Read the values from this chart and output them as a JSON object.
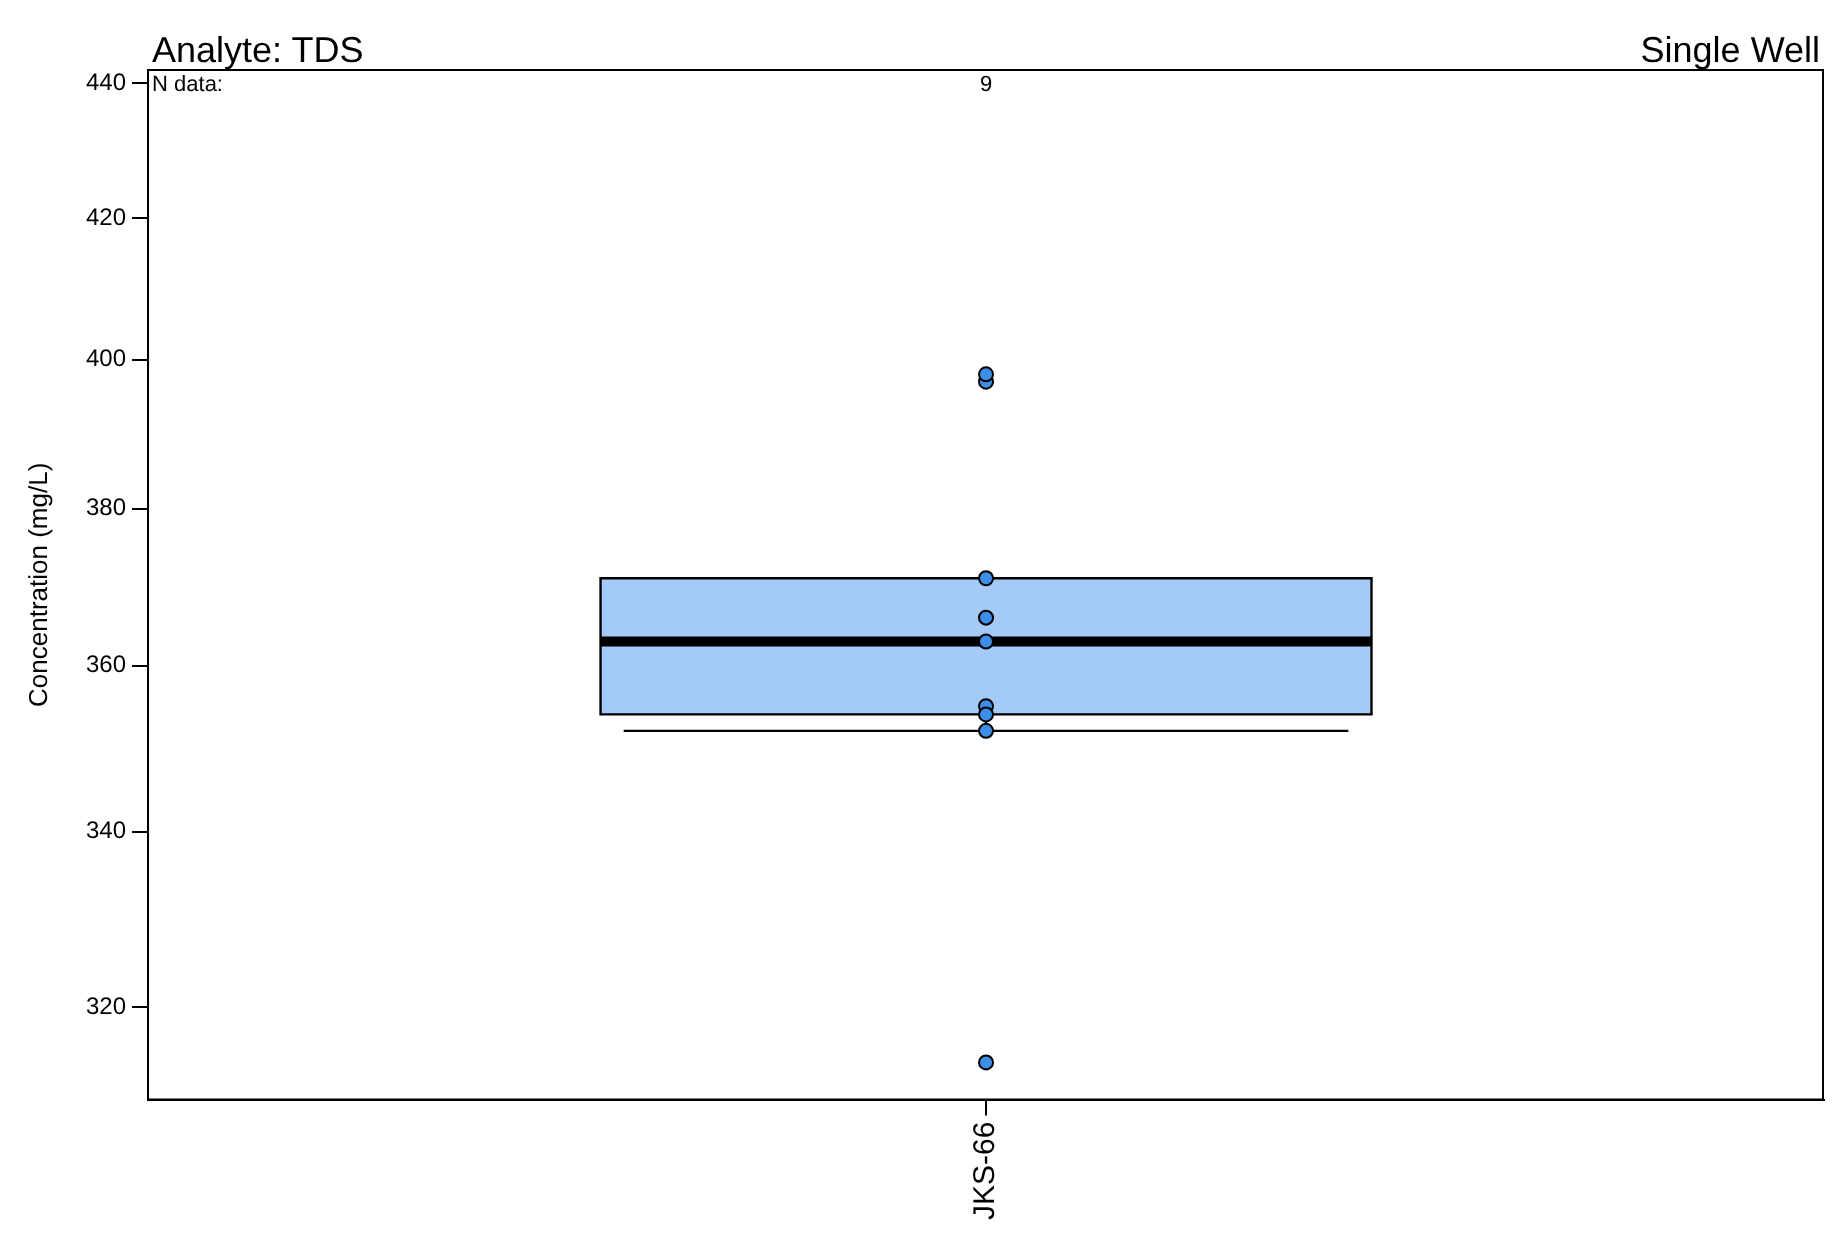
{
  "chart_data": {
    "type": "box",
    "title": "Analyte: TDS",
    "subtitle": "Single Well",
    "ylabel": "Concentration (mg/L)",
    "annotations": [
      "N data:",
      "9"
    ],
    "categories": [
      "JKS-66"
    ],
    "series": [
      {
        "type": "box",
        "color": "#a4cbf8",
        "boxes": [
          {
            "low": 352,
            "q1": 354,
            "median": 363,
            "q3": 371,
            "high": 371
          }
        ]
      },
      {
        "type": "scatter",
        "color": "#3d8ee6",
        "x": [
          "JKS-66",
          "JKS-66",
          "JKS-66",
          "JKS-66",
          "JKS-66",
          "JKS-66",
          "JKS-66",
          "JKS-66",
          "JKS-66"
        ],
        "values": [
          363,
          397,
          366,
          355,
          354,
          398,
          352,
          371,
          314
        ]
      }
    ],
    "ylim": [
      310,
      442
    ],
    "yticks": [
      320,
      340,
      360,
      380,
      400,
      420,
      440
    ],
    "log": true,
    "marker": "circle",
    "legend": false,
    "grid": false
  }
}
